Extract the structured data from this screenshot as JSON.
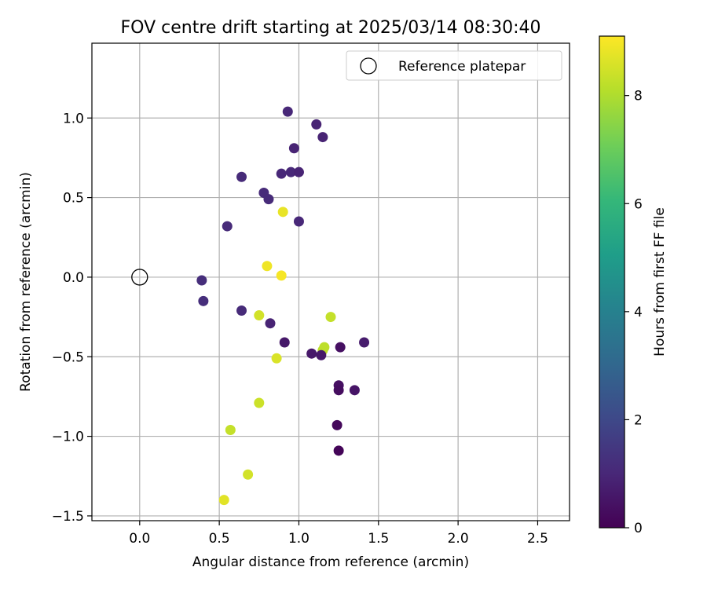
{
  "chart_data": {
    "type": "scatter",
    "title": "FOV centre drift starting at 2025/03/14 08:30:40",
    "xlabel": "Angular distance from reference (arcmin)",
    "ylabel": "Rotation from reference (arcmin)",
    "xlim": [
      -0.3,
      2.7
    ],
    "ylim": [
      -1.53,
      1.47
    ],
    "x_ticks": [
      0.0,
      0.5,
      1.0,
      1.5,
      2.0,
      2.5
    ],
    "x_tick_labels": [
      "0.0",
      "0.5",
      "1.0",
      "1.5",
      "2.0",
      "2.5"
    ],
    "y_ticks": [
      -1.5,
      -1.0,
      -0.5,
      0.0,
      0.5,
      1.0
    ],
    "y_tick_labels": [
      "−1.5",
      "−1.0",
      "−0.5",
      "0.0",
      "0.5",
      "1.0"
    ],
    "grid": true,
    "legend": {
      "placement": "top-right",
      "entries": [
        "Reference platepar"
      ]
    },
    "reference_point": {
      "name": "Reference platepar",
      "x": 0.0,
      "y": 0.0
    },
    "colorbar": {
      "label": "Hours from first FF file",
      "range": [
        0,
        9.1
      ],
      "ticks": [
        0,
        2,
        4,
        6,
        8
      ],
      "tick_labels": [
        "0",
        "2",
        "4",
        "6",
        "8"
      ],
      "colormap": "viridis",
      "stops": [
        "#440154",
        "#482878",
        "#3e4989",
        "#31688e",
        "#26828e",
        "#1f9e89",
        "#35b779",
        "#6ece58",
        "#b5de2b",
        "#fde725"
      ]
    },
    "points": [
      {
        "x": 0.93,
        "y": 1.04,
        "t": 1.0
      },
      {
        "x": 1.11,
        "y": 0.96,
        "t": 0.9
      },
      {
        "x": 1.15,
        "y": 0.88,
        "t": 0.9
      },
      {
        "x": 0.97,
        "y": 0.81,
        "t": 0.9
      },
      {
        "x": 0.89,
        "y": 0.65,
        "t": 1.0
      },
      {
        "x": 0.95,
        "y": 0.66,
        "t": 1.0
      },
      {
        "x": 1.0,
        "y": 0.66,
        "t": 0.9
      },
      {
        "x": 0.64,
        "y": 0.63,
        "t": 1.1
      },
      {
        "x": 0.78,
        "y": 0.53,
        "t": 1.1
      },
      {
        "x": 0.81,
        "y": 0.49,
        "t": 1.1
      },
      {
        "x": 0.9,
        "y": 0.41,
        "t": 8.8
      },
      {
        "x": 1.0,
        "y": 0.35,
        "t": 1.0
      },
      {
        "x": 0.55,
        "y": 0.32,
        "t": 1.1
      },
      {
        "x": 0.8,
        "y": 0.07,
        "t": 8.9
      },
      {
        "x": 0.89,
        "y": 0.01,
        "t": 9.0
      },
      {
        "x": 0.39,
        "y": -0.02,
        "t": 1.2
      },
      {
        "x": 0.4,
        "y": -0.15,
        "t": 1.2
      },
      {
        "x": 0.64,
        "y": -0.21,
        "t": 1.1
      },
      {
        "x": 0.75,
        "y": -0.24,
        "t": 8.5
      },
      {
        "x": 0.82,
        "y": -0.29,
        "t": 0.9
      },
      {
        "x": 1.2,
        "y": -0.25,
        "t": 8.3
      },
      {
        "x": 0.91,
        "y": -0.41,
        "t": 0.6
      },
      {
        "x": 1.41,
        "y": -0.41,
        "t": 0.7
      },
      {
        "x": 1.26,
        "y": -0.44,
        "t": 0.4
      },
      {
        "x": 1.16,
        "y": -0.44,
        "t": 8.2
      },
      {
        "x": 1.15,
        "y": -0.46,
        "t": 8.2
      },
      {
        "x": 1.08,
        "y": -0.48,
        "t": 0.6
      },
      {
        "x": 1.14,
        "y": -0.49,
        "t": 0.6
      },
      {
        "x": 0.86,
        "y": -0.51,
        "t": 8.6
      },
      {
        "x": 1.25,
        "y": -0.68,
        "t": 0.4
      },
      {
        "x": 1.25,
        "y": -0.71,
        "t": 0.3
      },
      {
        "x": 1.35,
        "y": -0.71,
        "t": 0.5
      },
      {
        "x": 0.75,
        "y": -0.79,
        "t": 8.4
      },
      {
        "x": 1.24,
        "y": -0.93,
        "t": 0.2
      },
      {
        "x": 0.57,
        "y": -0.96,
        "t": 8.3
      },
      {
        "x": 1.25,
        "y": -1.09,
        "t": 0.1
      },
      {
        "x": 0.68,
        "y": -1.24,
        "t": 8.5
      },
      {
        "x": 0.53,
        "y": -1.4,
        "t": 8.7
      }
    ]
  }
}
